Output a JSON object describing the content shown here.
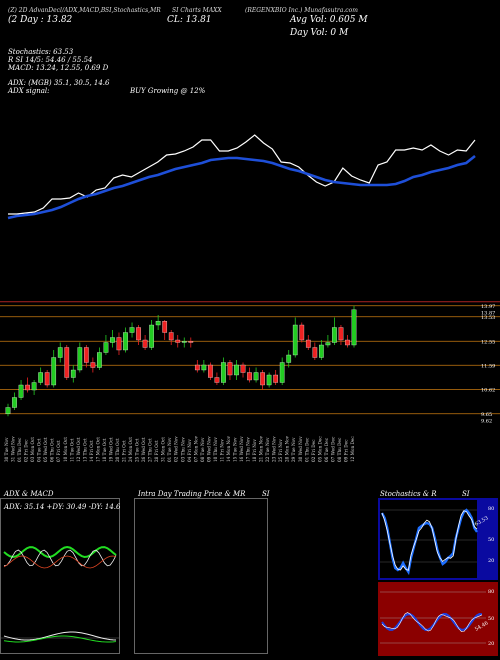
{
  "header": {
    "line1_left": "(Z) 2D AdvanDecl/ADX,MACD,B",
    "line1_mid": "SI,Stochastics,MR",
    "line1_mid2": "SI Charts MAXX",
    "line1_right": "(REGENXBIO Inc.) Munafasutra.com",
    "price_row": "(2 Day : 13.82",
    "close_label": "CL: 13.81",
    "avg_vol": "Avg Vol: 0.605 M",
    "day_vol": "Day Vol: 0   M"
  },
  "indicators": {
    "stochastics": "Stochastics: 63.53",
    "rsi": "R                SI 14/5: 54.46 / 55.54",
    "macd": "MACD: 13.24, 12.55, 0.69 D",
    "adx": "ADX:                   (MGB) 35.1, 30.5, 14.6",
    "adx_signal_label": "ADX signal:",
    "adx_signal_value": "BUY Growing @ 12%"
  },
  "price_levels": [
    "13.97",
    "13.87",
    "13.53",
    "12.55",
    "11.59",
    "10.62",
    "9.65",
    "9.62"
  ],
  "date_labels": [
    "30 Tue Nov",
    "31 Wed Nov",
    "01 Thu Dec",
    "02 Fri Dec",
    "03 Mon Oct",
    "04 Tue Oct",
    "05 Wed Oct",
    "06 Thu Oct",
    "07 Fri Oct",
    "10 Mon Oct",
    "11 Tue Oct",
    "12 Wed Oct",
    "13 Thu Oct",
    "14 Fri Oct",
    "17 Mon Oct",
    "18 Tue Oct",
    "19 Wed Oct",
    "20 Thu Oct",
    "21 Fri Oct",
    "24 Mon Oct",
    "25 Tue Oct",
    "26 Wed Oct",
    "27 Thu Oct",
    "28 Fri Oct",
    "31 Mon Oct",
    "01 Tue Nov",
    "02 Wed Nov",
    "03 Thu Nov",
    "04 Fri Nov",
    "07 Mon Nov",
    "08 Tue Nov",
    "09 Wed Nov",
    "10 Thu Nov",
    "11 Fri Nov",
    "14 Mon Nov",
    "15 Tue Nov",
    "16 Wed Nov",
    "17 Thu Nov",
    "18 Fri Nov",
    "21 Mon Nov",
    "22 Tue Nov",
    "23 Wed Nov",
    "25 Fri Nov",
    "28 Mon Nov",
    "29 Tue Nov",
    "30 Wed Nov",
    "01 Thu Dec",
    "02 Fri Dec",
    "05 Mon Dec",
    "06 Tue Dec",
    "07 Wed Dec",
    "08 Thu Dec",
    "09 Fri Dec",
    "12 Mon Dec"
  ],
  "panels": {
    "adx_title": "ADX  & MACD",
    "adx_value": "ADX: 35.14  +DY: 30.49  -DY: 14.63",
    "intraday_title": "Intra  Day Trading Price  & MR",
    "intraday_si": "SI",
    "stoch_title": "Stochastics & R",
    "stoch_si": "SI",
    "stoch_levels": [
      "80",
      "50",
      "20"
    ],
    "rsi_levels": [
      "80",
      "50",
      "20"
    ],
    "stoch_readout": "63.53",
    "rsi_readout": "54.46"
  },
  "colors": {
    "background": "#000000",
    "ema": "#1e4fd8",
    "price_line": "#ffffff",
    "bull": "#22cc22",
    "bear": "#ee2222",
    "level_line": "#c87a10",
    "stoch_bg": "#000000",
    "rsi_bg": "#8b0000",
    "stoch_panel_bg": "#0a0aa0"
  },
  "chart_data": {
    "type": "line",
    "series": [
      {
        "name": "",
        "values": [
          214,
          214,
          213,
          212,
          208,
          199,
          199,
          198,
          193,
          197,
          190,
          188,
          178,
          175,
          177,
          172,
          167,
          162,
          155,
          154,
          151,
          147,
          140,
          140,
          151,
          151,
          148,
          142,
          135,
          143,
          149,
          162,
          163,
          167,
          175,
          182,
          186,
          182,
          168,
          176,
          180,
          183,
          165,
          162,
          150,
          150,
          148,
          150,
          145,
          151,
          155,
          150,
          151,
          140
        ]
      },
      {
        "name": "",
        "values": [
          218,
          216,
          215,
          214,
          212,
          210,
          207,
          203,
          199,
          196,
          194,
          191,
          188,
          186,
          183,
          180,
          177,
          175,
          172,
          169,
          167,
          165,
          163,
          160,
          159,
          158,
          158,
          159,
          160,
          161,
          163,
          166,
          169,
          171,
          174,
          177,
          180,
          182,
          183,
          184,
          185,
          185,
          185,
          185,
          184,
          181,
          177,
          175,
          172,
          170,
          168,
          165,
          163,
          156
        ]
      }
    ],
    "candles": [
      {
        "o": 9.65,
        "c": 9.9,
        "h": 10.05,
        "l": 9.55
      },
      {
        "o": 9.9,
        "c": 10.3,
        "h": 10.5,
        "l": 9.8
      },
      {
        "o": 10.3,
        "c": 10.8,
        "h": 11.0,
        "l": 10.2
      },
      {
        "o": 10.8,
        "c": 10.6,
        "h": 11.1,
        "l": 10.5
      },
      {
        "o": 10.6,
        "c": 10.9,
        "h": 11.0,
        "l": 10.4
      },
      {
        "o": 10.9,
        "c": 11.3,
        "h": 11.5,
        "l": 10.8
      },
      {
        "o": 11.3,
        "c": 10.8,
        "h": 11.4,
        "l": 10.7
      },
      {
        "o": 10.8,
        "c": 11.9,
        "h": 12.2,
        "l": 10.7
      },
      {
        "o": 11.9,
        "c": 12.3,
        "h": 12.5,
        "l": 11.7
      },
      {
        "o": 12.3,
        "c": 11.1,
        "h": 12.4,
        "l": 11.0
      },
      {
        "o": 11.1,
        "c": 11.4,
        "h": 11.6,
        "l": 10.9
      },
      {
        "o": 11.4,
        "c": 12.3,
        "h": 12.5,
        "l": 11.3
      },
      {
        "o": 12.3,
        "c": 11.7,
        "h": 12.4,
        "l": 11.5
      },
      {
        "o": 11.7,
        "c": 11.5,
        "h": 11.9,
        "l": 11.3
      },
      {
        "o": 11.5,
        "c": 12.1,
        "h": 12.3,
        "l": 11.4
      },
      {
        "o": 12.1,
        "c": 12.5,
        "h": 12.8,
        "l": 12.0
      },
      {
        "o": 12.5,
        "c": 12.7,
        "h": 13.0,
        "l": 12.3
      },
      {
        "o": 12.7,
        "c": 12.2,
        "h": 12.9,
        "l": 12.0
      },
      {
        "o": 12.2,
        "c": 12.9,
        "h": 13.1,
        "l": 12.1
      },
      {
        "o": 12.9,
        "c": 13.1,
        "h": 13.3,
        "l": 12.7
      },
      {
        "o": 13.1,
        "c": 12.6,
        "h": 13.2,
        "l": 12.4
      },
      {
        "o": 12.6,
        "c": 12.3,
        "h": 12.8,
        "l": 12.2
      },
      {
        "o": 12.3,
        "c": 13.2,
        "h": 13.4,
        "l": 12.2
      },
      {
        "o": 13.2,
        "c": 13.35,
        "h": 13.6,
        "l": 13.0
      },
      {
        "o": 13.35,
        "c": 12.9,
        "h": 13.4,
        "l": 12.6
      },
      {
        "o": 12.9,
        "c": 12.6,
        "h": 13.0,
        "l": 12.4
      },
      {
        "o": 12.6,
        "c": 12.5,
        "h": 12.8,
        "l": 12.3
      },
      {
        "o": 12.5,
        "c": 12.55,
        "h": 12.7,
        "l": 12.3
      },
      {
        "o": 12.55,
        "c": 12.5,
        "h": 12.7,
        "l": 12.3
      },
      {
        "o": 11.6,
        "c": 11.4,
        "h": 11.8,
        "l": 11.3
      },
      {
        "o": 11.4,
        "c": 11.6,
        "h": 11.8,
        "l": 11.3
      },
      {
        "o": 11.6,
        "c": 11.1,
        "h": 11.7,
        "l": 11.0
      },
      {
        "o": 11.1,
        "c": 10.9,
        "h": 11.3,
        "l": 10.8
      },
      {
        "o": 10.9,
        "c": 11.7,
        "h": 11.9,
        "l": 10.8
      },
      {
        "o": 11.7,
        "c": 11.2,
        "h": 11.8,
        "l": 11.0
      },
      {
        "o": 11.2,
        "c": 11.6,
        "h": 11.8,
        "l": 11.0
      },
      {
        "o": 11.6,
        "c": 11.3,
        "h": 11.7,
        "l": 11.1
      },
      {
        "o": 11.3,
        "c": 11.0,
        "h": 11.5,
        "l": 10.9
      },
      {
        "o": 11.0,
        "c": 11.3,
        "h": 11.5,
        "l": 10.9
      },
      {
        "o": 11.3,
        "c": 10.8,
        "h": 11.4,
        "l": 10.6
      },
      {
        "o": 10.8,
        "c": 11.2,
        "h": 11.3,
        "l": 10.7
      },
      {
        "o": 11.2,
        "c": 10.9,
        "h": 11.4,
        "l": 10.8
      },
      {
        "o": 10.9,
        "c": 11.7,
        "h": 11.9,
        "l": 10.8
      },
      {
        "o": 11.7,
        "c": 12.0,
        "h": 12.2,
        "l": 11.5
      },
      {
        "o": 12.0,
        "c": 13.2,
        "h": 13.5,
        "l": 11.9
      },
      {
        "o": 13.2,
        "c": 12.6,
        "h": 13.3,
        "l": 12.5
      },
      {
        "o": 12.6,
        "c": 12.3,
        "h": 12.8,
        "l": 12.2
      },
      {
        "o": 12.3,
        "c": 11.9,
        "h": 12.5,
        "l": 11.8
      },
      {
        "o": 11.9,
        "c": 12.4,
        "h": 12.6,
        "l": 11.8
      },
      {
        "o": 12.4,
        "c": 12.5,
        "h": 12.8,
        "l": 12.3
      },
      {
        "o": 12.5,
        "c": 13.1,
        "h": 13.5,
        "l": 12.4
      },
      {
        "o": 13.1,
        "c": 12.6,
        "h": 13.2,
        "l": 12.4
      },
      {
        "o": 12.6,
        "c": 12.4,
        "h": 12.8,
        "l": 12.3
      },
      {
        "o": 12.4,
        "c": 13.81,
        "h": 13.97,
        "l": 12.3
      }
    ],
    "ylim": [
      9.4,
      14.2
    ]
  }
}
